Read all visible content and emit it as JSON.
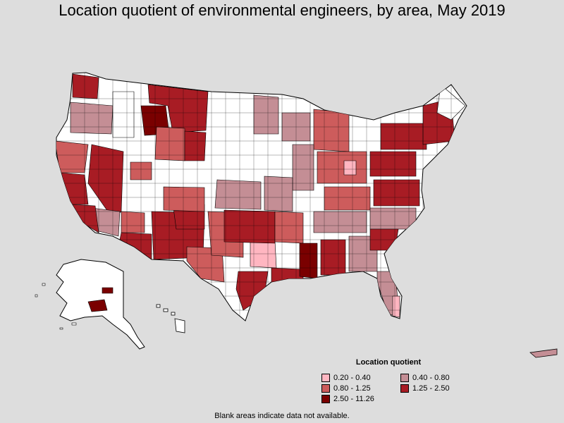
{
  "title": "Location quotient of environmental engineers, by area, May 2019",
  "legend": {
    "title": "Location quotient",
    "items": [
      {
        "label": "0.20 - 0.40",
        "color": "#ffb6c1"
      },
      {
        "label": "0.40 - 0.80",
        "color": "#c48e95"
      },
      {
        "label": "0.80 - 1.25",
        "color": "#cd5c5c"
      },
      {
        "label": "1.25 - 2.50",
        "color": "#a81c24"
      },
      {
        "label": "2.50 - 11.26",
        "color": "#7a0000"
      }
    ]
  },
  "footnote": "Blank areas indicate data not available.",
  "colors": {
    "background": "#dddddd",
    "land_blank": "#ffffff",
    "border": "#000000"
  }
}
